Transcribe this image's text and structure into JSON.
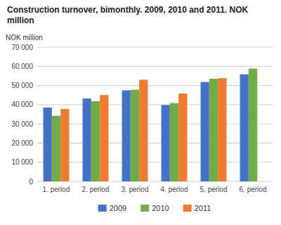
{
  "chart_data": {
    "type": "bar",
    "title": "Construction turnover, bimonthly. 2009, 2010 and 2011. NOK million",
    "y_label": "NOK million",
    "categories": [
      "1. period",
      "2. period",
      "3. period",
      "4. period",
      "5. period",
      "6. period"
    ],
    "series": [
      {
        "name": "2009",
        "color": "#4472C4",
        "values": [
          38500,
          43200,
          47500,
          39800,
          51800,
          55800
        ]
      },
      {
        "name": "2010",
        "color": "#70AD47",
        "values": [
          34200,
          41800,
          47800,
          40800,
          53500,
          58800
        ]
      },
      {
        "name": "2011",
        "color": "#ED7D31",
        "values": [
          37800,
          45000,
          53000,
          45800,
          53800,
          null
        ]
      }
    ],
    "ylim": [
      0,
      70000
    ],
    "yticks": [
      0,
      {
        "value": 10000,
        "label": "10 000"
      },
      {
        "value": 20000,
        "label": "20 000"
      },
      {
        "value": 30000,
        "label": "30 000"
      },
      {
        "value": 40000,
        "label": "40 000"
      },
      {
        "value": 50000,
        "label": "50 000"
      },
      {
        "value": 60000,
        "label": "60 000"
      },
      {
        "value": 70000,
        "label": "70 000"
      }
    ],
    "grid": true,
    "legend": "bottom"
  }
}
